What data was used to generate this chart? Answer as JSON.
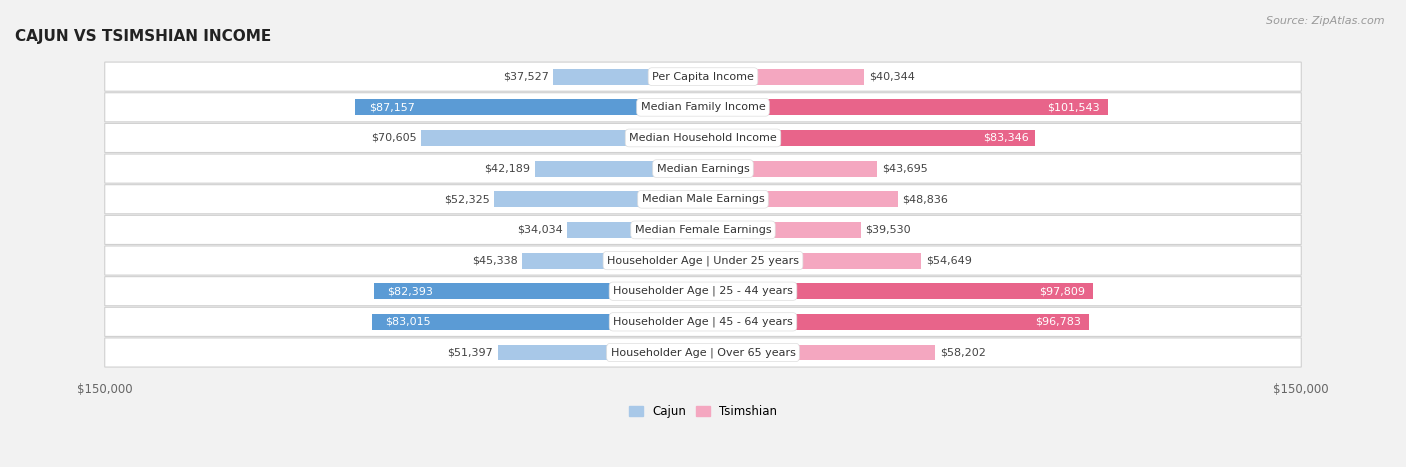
{
  "title": "CAJUN VS TSIMSHIAN INCOME",
  "source": "Source: ZipAtlas.com",
  "categories": [
    "Per Capita Income",
    "Median Family Income",
    "Median Household Income",
    "Median Earnings",
    "Median Male Earnings",
    "Median Female Earnings",
    "Householder Age | Under 25 years",
    "Householder Age | 25 - 44 years",
    "Householder Age | 45 - 64 years",
    "Householder Age | Over 65 years"
  ],
  "cajun_values": [
    37527,
    87157,
    70605,
    42189,
    52325,
    34034,
    45338,
    82393,
    83015,
    51397
  ],
  "tsimshian_values": [
    40344,
    101543,
    83346,
    43695,
    48836,
    39530,
    54649,
    97809,
    96783,
    58202
  ],
  "cajun_labels": [
    "$37,527",
    "$87,157",
    "$70,605",
    "$42,189",
    "$52,325",
    "$34,034",
    "$45,338",
    "$82,393",
    "$83,015",
    "$51,397"
  ],
  "tsimshian_labels": [
    "$40,344",
    "$101,543",
    "$83,346",
    "$43,695",
    "$48,836",
    "$39,530",
    "$54,649",
    "$97,809",
    "$96,783",
    "$58,202"
  ],
  "max_value": 150000,
  "cajun_color_light": "#a8c8e8",
  "cajun_color_dark": "#5b9bd5",
  "tsimshian_color_light": "#f4a7c0",
  "tsimshian_color_dark": "#e8648a",
  "background_color": "#f2f2f2",
  "row_bg_color": "#ffffff",
  "row_border_color": "#d0d0d0",
  "title_fontsize": 11,
  "source_fontsize": 8,
  "bar_label_fontsize": 8,
  "category_fontsize": 8,
  "axis_label_fontsize": 8.5,
  "dark_threshold": 75000
}
